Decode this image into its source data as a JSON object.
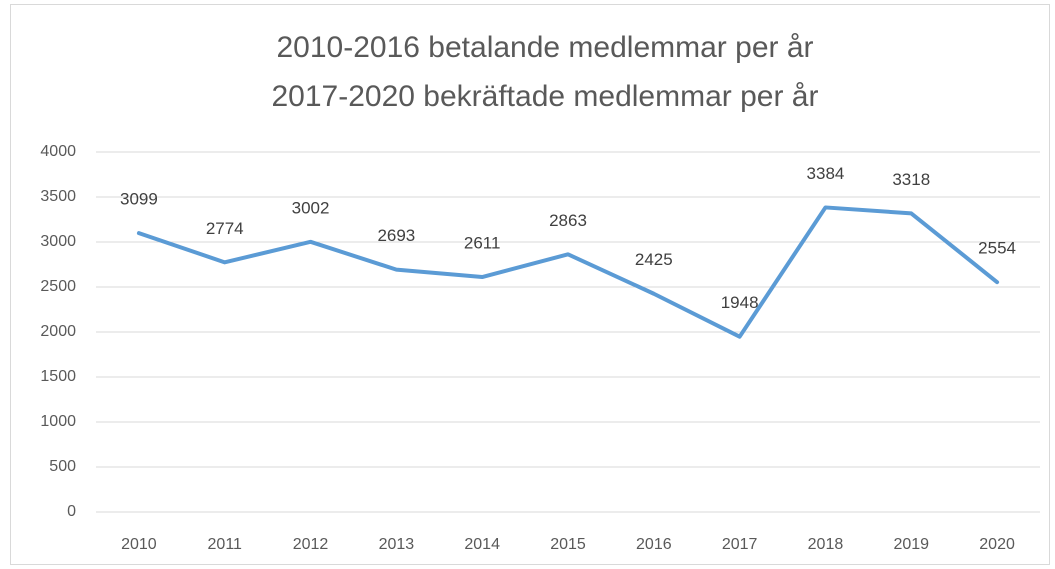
{
  "chart_data": {
    "type": "line",
    "title": [
      "2010-2016 betalande medlemmar per år",
      "2017-2020 bekräftade medlemmar per år"
    ],
    "categories": [
      "2010",
      "2011",
      "2012",
      "2013",
      "2014",
      "2015",
      "2016",
      "2017",
      "2018",
      "2019",
      "2020"
    ],
    "values": [
      3099,
      2774,
      3002,
      2693,
      2611,
      2863,
      2425,
      1948,
      3384,
      3318,
      2554
    ],
    "color": "#5b9bd5",
    "ylim": [
      0,
      4000
    ],
    "yticks": [
      0,
      500,
      1000,
      1500,
      2000,
      2500,
      3000,
      3500,
      4000
    ],
    "grid": true
  }
}
